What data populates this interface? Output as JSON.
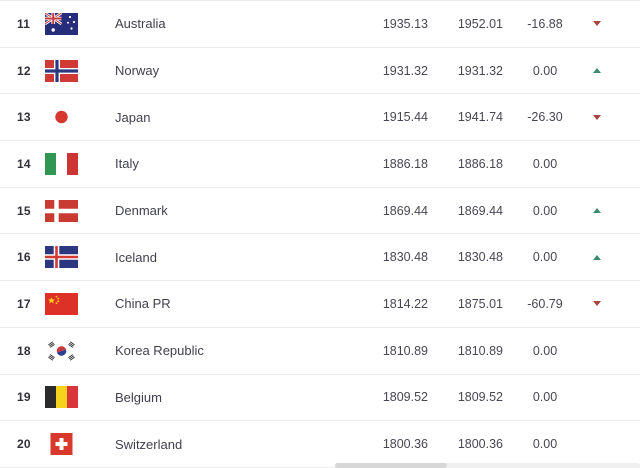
{
  "colors": {
    "trend_up": "#3d8b6e",
    "trend_down": "#a8433f",
    "row_divider": "#ededed"
  },
  "table": {
    "columns": [
      "rank",
      "flag",
      "country",
      "points",
      "previous_points",
      "change",
      "trend"
    ],
    "rows": [
      {
        "rank": "11",
        "country": "Australia",
        "points": "1935.13",
        "prev": "1952.01",
        "change": "-16.88",
        "trend": "down",
        "flag_icon": "flag-australia"
      },
      {
        "rank": "12",
        "country": "Norway",
        "points": "1931.32",
        "prev": "1931.32",
        "change": "0.00",
        "trend": "up",
        "flag_icon": "flag-norway"
      },
      {
        "rank": "13",
        "country": "Japan",
        "points": "1915.44",
        "prev": "1941.74",
        "change": "-26.30",
        "trend": "down",
        "flag_icon": "flag-japan"
      },
      {
        "rank": "14",
        "country": "Italy",
        "points": "1886.18",
        "prev": "1886.18",
        "change": "0.00",
        "trend": "none",
        "flag_icon": "flag-italy"
      },
      {
        "rank": "15",
        "country": "Denmark",
        "points": "1869.44",
        "prev": "1869.44",
        "change": "0.00",
        "trend": "up",
        "flag_icon": "flag-denmark"
      },
      {
        "rank": "16",
        "country": "Iceland",
        "points": "1830.48",
        "prev": "1830.48",
        "change": "0.00",
        "trend": "up",
        "flag_icon": "flag-iceland"
      },
      {
        "rank": "17",
        "country": "China PR",
        "points": "1814.22",
        "prev": "1875.01",
        "change": "-60.79",
        "trend": "down",
        "flag_icon": "flag-china-pr"
      },
      {
        "rank": "18",
        "country": "Korea Republic",
        "points": "1810.89",
        "prev": "1810.89",
        "change": "0.00",
        "trend": "none",
        "flag_icon": "flag-korea-republic"
      },
      {
        "rank": "19",
        "country": "Belgium",
        "points": "1809.52",
        "prev": "1809.52",
        "change": "0.00",
        "trend": "none",
        "flag_icon": "flag-belgium"
      },
      {
        "rank": "20",
        "country": "Switzerland",
        "points": "1800.36",
        "prev": "1800.36",
        "change": "0.00",
        "trend": "none",
        "flag_icon": "flag-switzerland"
      }
    ]
  }
}
